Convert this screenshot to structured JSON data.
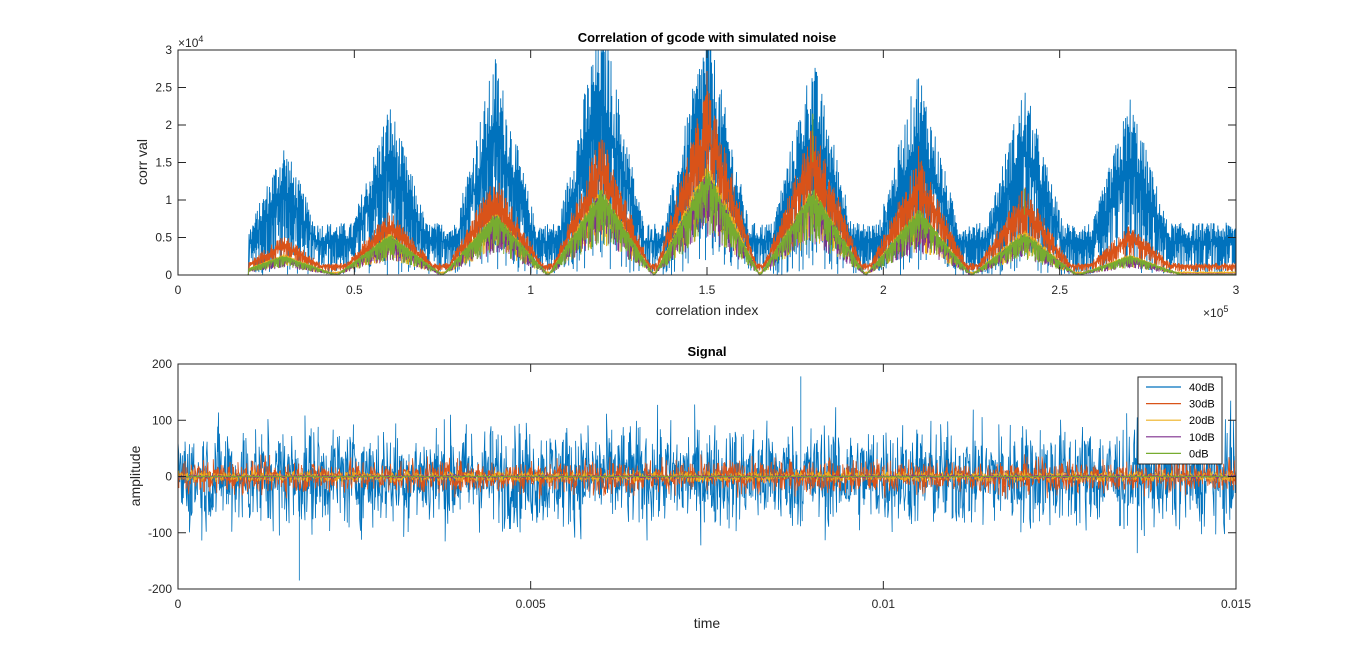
{
  "chart_data": [
    {
      "type": "line",
      "title": "Correlation of gcode with simulated noise",
      "xlabel": "correlation index",
      "ylabel": "corr val",
      "xlim": [
        0,
        300000
      ],
      "ylim": [
        0,
        30000
      ],
      "x_ticks": [
        "0",
        "0.5",
        "1",
        "1.5",
        "2",
        "2.5",
        "3"
      ],
      "x_ticks_values": [
        0,
        50000,
        100000,
        150000,
        200000,
        250000,
        300000
      ],
      "x_exponent": "10",
      "x_exponent_power": "5",
      "y_ticks": [
        "0",
        "0.5",
        "1",
        "1.5",
        "2",
        "2.5",
        "3"
      ],
      "y_ticks_values": [
        0,
        5000,
        10000,
        15000,
        20000,
        25000,
        30000
      ],
      "y_exponent": "10",
      "y_exponent_power": "4",
      "peak_centers": [
        30000,
        60000,
        90000,
        120000,
        150000,
        180000,
        210000,
        240000,
        270000
      ],
      "signal_start": 20000,
      "series": [
        {
          "name": "40dB",
          "color": "#0072BD",
          "peak_heights": [
            11500,
            15000,
            19000,
            23000,
            22000,
            19000,
            18000,
            16500,
            15500
          ],
          "baseline": 4500
        },
        {
          "name": "30dB",
          "color": "#D95319",
          "peak_heights": [
            4000,
            6500,
            10000,
            14000,
            19000,
            15000,
            12000,
            9000,
            5000
          ],
          "baseline": 1200
        },
        {
          "name": "20dB",
          "color": "#EDB120",
          "peak_heights": [
            2500,
            5000,
            7500,
            10500,
            13500,
            10500,
            8000,
            5500,
            2500
          ],
          "baseline": 350
        },
        {
          "name": "10dB",
          "color": "#7E2F8E",
          "peak_heights": [
            2200,
            4700,
            7200,
            10000,
            12500,
            10000,
            7500,
            5000,
            2200
          ],
          "baseline": 120
        },
        {
          "name": "0dB",
          "color": "#77AC30",
          "peak_heights": [
            2400,
            5000,
            7500,
            10500,
            12700,
            10500,
            8000,
            5200,
            2400
          ],
          "baseline": 50
        }
      ],
      "spikes": [
        {
          "x": 150000,
          "y": 27200
        },
        {
          "x": 180000,
          "y": 21500
        },
        {
          "x": 210000,
          "y": 17200
        },
        {
          "x": 240000,
          "y": 11500
        }
      ]
    },
    {
      "type": "line",
      "title": "Signal",
      "xlabel": "time",
      "ylabel": "amplitude",
      "xlim": [
        0,
        0.015
      ],
      "ylim": [
        -200,
        200
      ],
      "x_ticks": [
        "0",
        "0.005",
        "0.01",
        "0.015"
      ],
      "x_ticks_values": [
        0,
        0.005,
        0.01,
        0.015
      ],
      "y_ticks": [
        "-200",
        "-100",
        "0",
        "100",
        "200"
      ],
      "y_ticks_values": [
        -200,
        -100,
        0,
        100,
        200
      ],
      "legend_position": "top-right",
      "series": [
        {
          "name": "40dB",
          "color": "#0072BD",
          "amplitude": 100,
          "extreme_min": -185,
          "extreme_max": 178
        },
        {
          "name": "30dB",
          "color": "#D95319",
          "amplitude": 32
        },
        {
          "name": "20dB",
          "color": "#EDB120",
          "amplitude": 10
        },
        {
          "name": "10dB",
          "color": "#7E2F8E",
          "amplitude": 3.2
        },
        {
          "name": "0dB",
          "color": "#77AC30",
          "amplitude": 1
        }
      ]
    }
  ]
}
